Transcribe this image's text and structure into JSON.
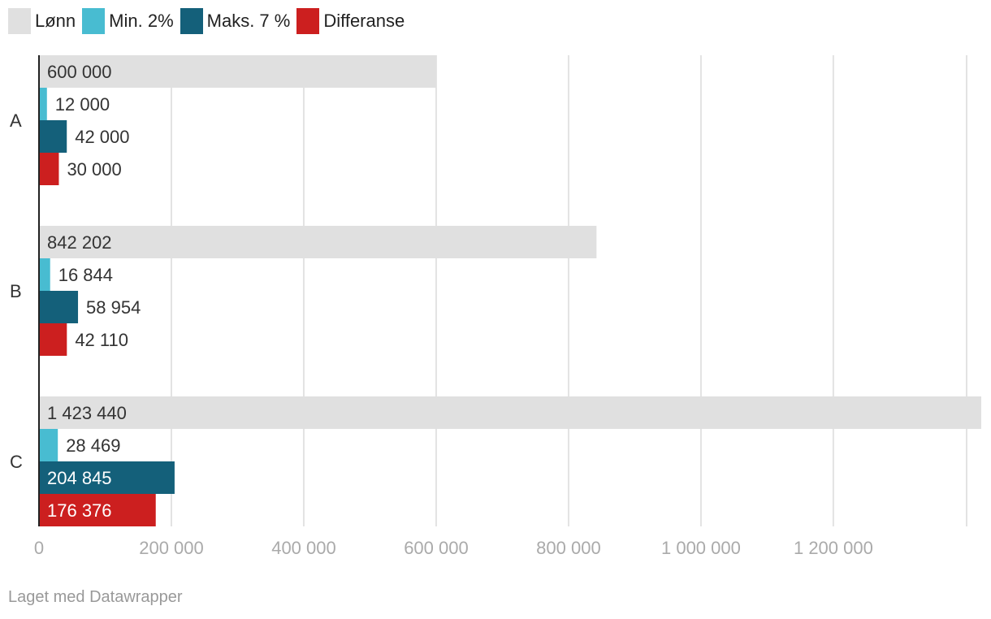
{
  "legend": [
    {
      "label": "Lønn",
      "color": "#e0e0e0"
    },
    {
      "label": "Min. 2%",
      "color": "#48bcd1"
    },
    {
      "label": "Maks. 7 %",
      "color": "#14607a"
    },
    {
      "label": "Differanse",
      "color": "#cc1f1f"
    }
  ],
  "footer": "Laget med Datawrapper",
  "chart_data": {
    "type": "bar",
    "orientation": "horizontal",
    "categories": [
      "A",
      "B",
      "C"
    ],
    "series": [
      {
        "name": "Lønn",
        "color": "#e0e0e0",
        "values": [
          600000,
          842202,
          1423440
        ],
        "labels": [
          "600 000",
          "842 202",
          "1 423 440"
        ]
      },
      {
        "name": "Min. 2%",
        "color": "#48bcd1",
        "values": [
          12000,
          16844,
          28469
        ],
        "labels": [
          "12 000",
          "16 844",
          "28 469"
        ]
      },
      {
        "name": "Maks. 7 %",
        "color": "#14607a",
        "values": [
          42000,
          58954,
          204845
        ],
        "labels": [
          "42 000",
          "58 954",
          "204 845"
        ]
      },
      {
        "name": "Differanse",
        "color": "#cc1f1f",
        "values": [
          30000,
          42110,
          176376
        ],
        "labels": [
          "30 000",
          "42 110",
          "176 376"
        ]
      }
    ],
    "x_ticks": [
      0,
      200000,
      400000,
      600000,
      800000,
      1000000,
      1200000
    ],
    "x_tick_labels": [
      "0",
      "200 000",
      "400 000",
      "600 000",
      "800 000",
      "1 000 000",
      "1 200 000"
    ],
    "xlim": [
      0,
      1400000
    ],
    "grid": true,
    "legend_position": "top-left"
  }
}
